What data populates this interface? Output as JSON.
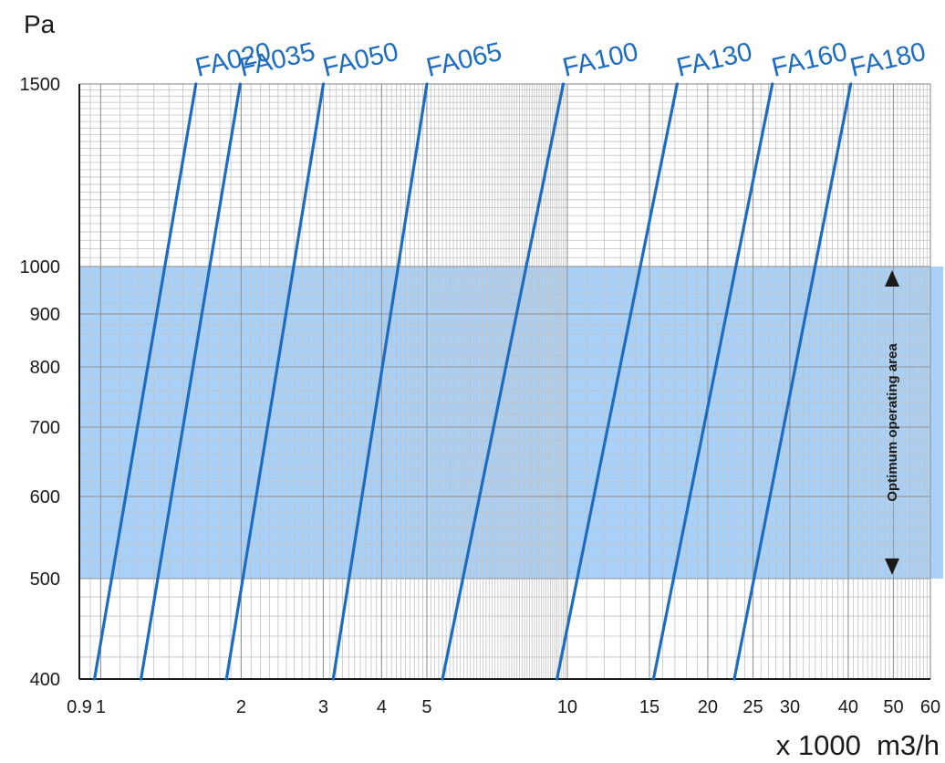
{
  "chart_data": {
    "type": "line",
    "title": "",
    "ylabel": "Pa",
    "xlabel": "x 1000  m3/h",
    "xscale": "log",
    "yscale": "log",
    "xlim": [
      0.9,
      60
    ],
    "ylim": [
      400,
      1500
    ],
    "x_ticks": [
      0.9,
      1,
      2,
      3,
      4,
      5,
      10,
      15,
      20,
      25,
      30,
      40,
      50,
      60
    ],
    "x_tick_labels": [
      "0.9",
      "1",
      "2",
      "3",
      "4",
      "5",
      "10",
      "15",
      "20",
      "25",
      "30",
      "40",
      "50",
      "60"
    ],
    "y_ticks": [
      400,
      500,
      600,
      700,
      800,
      900,
      1000,
      1500
    ],
    "y_tick_labels": [
      "400",
      "500",
      "600",
      "700",
      "800",
      "900",
      "1000",
      "1500"
    ],
    "grid": true,
    "band": {
      "label": "Optimum operating area",
      "y_range": [
        500,
        1000
      ],
      "color": "#a9d1f7"
    },
    "line_color": "#1e6cc0",
    "series": [
      {
        "name": "FA020",
        "x": [
          0.97,
          1.6
        ],
        "y": [
          400,
          1500
        ]
      },
      {
        "name": "FA035",
        "x": [
          1.22,
          1.99
        ],
        "y": [
          400,
          1500
        ]
      },
      {
        "name": "FA050",
        "x": [
          1.86,
          3.0
        ],
        "y": [
          400,
          1500
        ]
      },
      {
        "name": "FA065",
        "x": [
          3.15,
          5.0
        ],
        "y": [
          400,
          1500
        ]
      },
      {
        "name": "FA100",
        "x": [
          5.4,
          9.8
        ],
        "y": [
          400,
          1500
        ]
      },
      {
        "name": "FA130",
        "x": [
          9.5,
          17.2
        ],
        "y": [
          400,
          1500
        ]
      },
      {
        "name": "FA160",
        "x": [
          15.3,
          27.5
        ],
        "y": [
          400,
          1500
        ]
      },
      {
        "name": "FA180",
        "x": [
          22.8,
          40.5
        ],
        "y": [
          400,
          1500
        ]
      }
    ]
  }
}
